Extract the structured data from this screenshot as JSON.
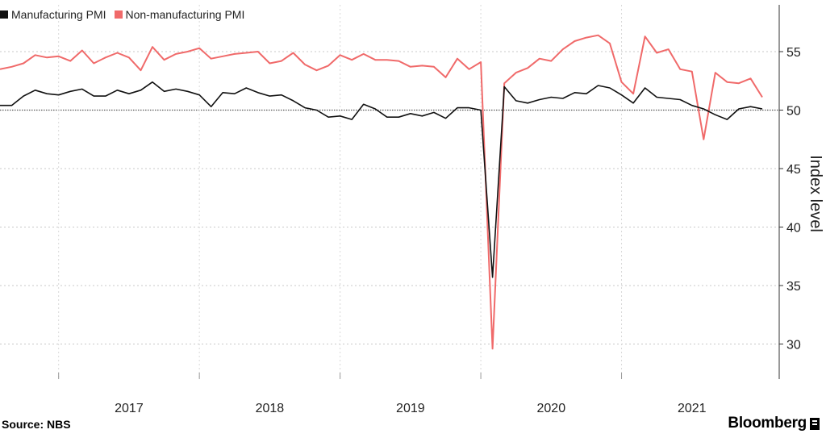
{
  "legend": {
    "items": [
      {
        "label": "Manufacturing PMI",
        "color": "#111111"
      },
      {
        "label": "Non-manufacturing PMI",
        "color": "#f06a6a"
      }
    ]
  },
  "footer": {
    "source": "Source: NBS",
    "brand": "Bloomberg"
  },
  "chart_data": {
    "type": "line",
    "title": "",
    "xlabel": "",
    "ylabel": "Index level",
    "ylim": [
      27,
      59
    ],
    "yticks": [
      30,
      35,
      40,
      45,
      50,
      55
    ],
    "xtick_labels": [
      "2017",
      "2018",
      "2019",
      "2020",
      "2021"
    ],
    "legend_position": "top-left",
    "grid": "horizontal dotted",
    "reference_line": 50,
    "x": [
      "2016-08",
      "2016-09",
      "2016-10",
      "2016-11",
      "2016-12",
      "2017-01",
      "2017-02",
      "2017-03",
      "2017-04",
      "2017-05",
      "2017-06",
      "2017-07",
      "2017-08",
      "2017-09",
      "2017-10",
      "2017-11",
      "2017-12",
      "2018-01",
      "2018-02",
      "2018-03",
      "2018-04",
      "2018-05",
      "2018-06",
      "2018-07",
      "2018-08",
      "2018-09",
      "2018-10",
      "2018-11",
      "2018-12",
      "2019-01",
      "2019-02",
      "2019-03",
      "2019-04",
      "2019-05",
      "2019-06",
      "2019-07",
      "2019-08",
      "2019-09",
      "2019-10",
      "2019-11",
      "2019-12",
      "2020-01",
      "2020-02",
      "2020-03",
      "2020-04",
      "2020-05",
      "2020-06",
      "2020-07",
      "2020-08",
      "2020-09",
      "2020-10",
      "2020-11",
      "2020-12",
      "2021-01",
      "2021-02",
      "2021-03",
      "2021-04",
      "2021-05",
      "2021-06",
      "2021-07",
      "2021-08",
      "2021-09",
      "2021-10",
      "2021-11",
      "2021-12",
      "2022-01"
    ],
    "series": [
      {
        "name": "Manufacturing PMI",
        "color": "#111111",
        "values": [
          50.4,
          50.4,
          51.2,
          51.7,
          51.4,
          51.3,
          51.6,
          51.8,
          51.2,
          51.2,
          51.7,
          51.4,
          51.7,
          52.4,
          51.6,
          51.8,
          51.6,
          51.3,
          50.3,
          51.5,
          51.4,
          51.9,
          51.5,
          51.2,
          51.3,
          50.8,
          50.2,
          50.0,
          49.4,
          49.5,
          49.2,
          50.5,
          50.1,
          49.4,
          49.4,
          49.7,
          49.5,
          49.8,
          49.3,
          50.2,
          50.2,
          50.0,
          35.7,
          52.0,
          50.8,
          50.6,
          50.9,
          51.1,
          51.0,
          51.5,
          51.4,
          52.1,
          51.9,
          51.3,
          50.6,
          51.9,
          51.1,
          51.0,
          50.9,
          50.4,
          50.1,
          49.6,
          49.2,
          50.1,
          50.3,
          50.1
        ]
      },
      {
        "name": "Non-manufacturing PMI",
        "color": "#f06a6a",
        "values": [
          53.5,
          53.7,
          54.0,
          54.7,
          54.5,
          54.6,
          54.2,
          55.1,
          54.0,
          54.5,
          54.9,
          54.5,
          53.4,
          55.4,
          54.3,
          54.8,
          55.0,
          55.3,
          54.4,
          54.6,
          54.8,
          54.9,
          55.0,
          54.0,
          54.2,
          54.9,
          53.9,
          53.4,
          53.8,
          54.7,
          54.3,
          54.8,
          54.3,
          54.3,
          54.2,
          53.7,
          53.8,
          53.7,
          52.8,
          54.4,
          53.5,
          54.1,
          29.6,
          52.3,
          53.2,
          53.6,
          54.4,
          54.2,
          55.2,
          55.9,
          56.2,
          56.4,
          55.7,
          52.4,
          51.4,
          56.3,
          54.9,
          55.2,
          53.5,
          53.3,
          47.5,
          53.2,
          52.4,
          52.3,
          52.7,
          51.1
        ]
      }
    ]
  }
}
